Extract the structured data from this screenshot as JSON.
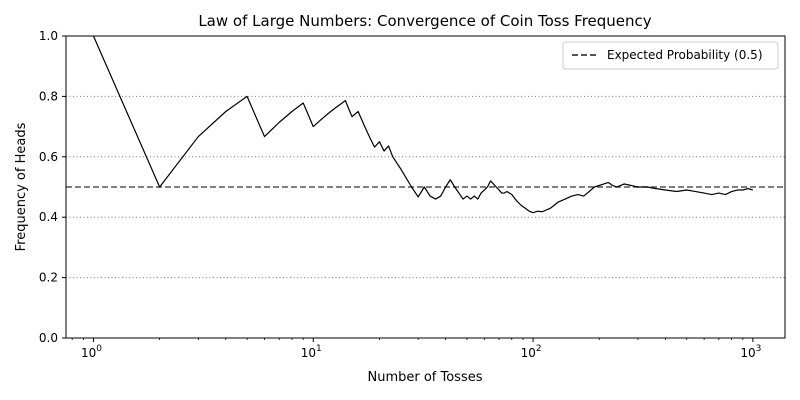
{
  "chart_data": {
    "type": "line",
    "title": "Law of Large Numbers: Convergence of Coin Toss Frequency",
    "xlabel": "Number of Tosses",
    "ylabel": "Frequency of Heads",
    "x_scale": "log",
    "xlim": [
      0.75,
      1400
    ],
    "ylim": [
      0.0,
      1.0
    ],
    "grid": "horizontal-dotted",
    "legend_position": "top-right",
    "x_ticks": [
      {
        "base": "10",
        "exp": "0",
        "value": 1
      },
      {
        "base": "10",
        "exp": "1",
        "value": 10
      },
      {
        "base": "10",
        "exp": "2",
        "value": 100
      },
      {
        "base": "10",
        "exp": "3",
        "value": 1000
      }
    ],
    "y_ticks": [
      "0.0",
      "0.2",
      "0.4",
      "0.6",
      "0.8",
      "1.0"
    ],
    "series": [
      {
        "color": "#000000",
        "x": [
          1,
          2,
          3,
          4,
          5,
          6,
          7,
          8,
          9,
          10,
          11,
          12,
          13,
          14,
          15,
          16,
          17,
          18,
          19,
          20,
          21,
          22,
          23,
          25,
          28,
          30,
          32,
          34,
          36,
          38,
          40,
          42,
          44,
          46,
          48,
          50,
          52,
          54,
          56,
          58,
          60,
          62,
          64,
          66,
          68,
          70,
          72,
          74,
          76,
          80,
          84,
          88,
          92,
          96,
          100,
          105,
          110,
          120,
          130,
          140,
          150,
          160,
          170,
          180,
          190,
          200,
          210,
          220,
          230,
          240,
          250,
          260,
          280,
          300,
          330,
          360,
          400,
          450,
          500,
          550,
          600,
          650,
          700,
          750,
          800,
          850,
          900,
          950,
          1000
        ],
        "values": [
          1.0,
          0.5,
          0.667,
          0.75,
          0.8,
          0.667,
          0.714,
          0.75,
          0.778,
          0.7,
          0.727,
          0.75,
          0.769,
          0.786,
          0.733,
          0.75,
          0.706,
          0.667,
          0.632,
          0.65,
          0.619,
          0.636,
          0.6,
          0.56,
          0.5,
          0.467,
          0.5,
          0.47,
          0.46,
          0.47,
          0.5,
          0.524,
          0.5,
          0.48,
          0.46,
          0.47,
          0.46,
          0.47,
          0.46,
          0.48,
          0.49,
          0.5,
          0.52,
          0.51,
          0.5,
          0.49,
          0.48,
          0.48,
          0.485,
          0.475,
          0.455,
          0.44,
          0.43,
          0.42,
          0.415,
          0.42,
          0.418,
          0.43,
          0.45,
          0.46,
          0.47,
          0.475,
          0.47,
          0.485,
          0.5,
          0.505,
          0.51,
          0.515,
          0.505,
          0.5,
          0.505,
          0.51,
          0.505,
          0.5,
          0.5,
          0.495,
          0.49,
          0.485,
          0.49,
          0.485,
          0.48,
          0.475,
          0.48,
          0.475,
          0.485,
          0.49,
          0.49,
          0.495,
          0.49
        ]
      },
      {
        "name": "Expected Probability (0.5)",
        "color": "#555555",
        "style": "dashed",
        "y": 0.5
      }
    ]
  }
}
